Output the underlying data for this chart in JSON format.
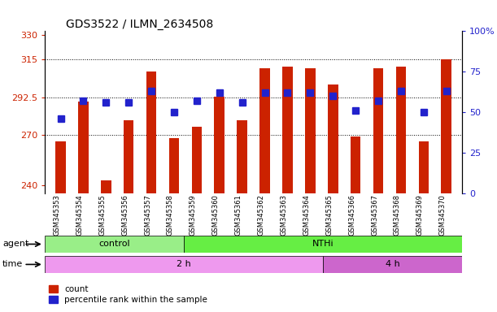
{
  "title": "GDS3522 / ILMN_2634508",
  "samples": [
    "GSM345353",
    "GSM345354",
    "GSM345355",
    "GSM345356",
    "GSM345357",
    "GSM345358",
    "GSM345359",
    "GSM345360",
    "GSM345361",
    "GSM345362",
    "GSM345363",
    "GSM345364",
    "GSM345365",
    "GSM345366",
    "GSM345367",
    "GSM345368",
    "GSM345369",
    "GSM345370"
  ],
  "counts": [
    266,
    290,
    243,
    279,
    308,
    268,
    275,
    293,
    279,
    310,
    311,
    310,
    300,
    269,
    310,
    311,
    266,
    315
  ],
  "percentile_ranks": [
    46,
    57,
    56,
    56,
    63,
    50,
    57,
    62,
    56,
    62,
    62,
    62,
    60,
    51,
    57,
    63,
    50,
    63
  ],
  "ylim_left": [
    235,
    332
  ],
  "ylim_right": [
    0,
    100
  ],
  "yticks_left": [
    240,
    270,
    292.5,
    315,
    330
  ],
  "yticks_right": [
    0,
    25,
    50,
    75,
    100
  ],
  "ytick_labels_left": [
    "240",
    "270",
    "292.5",
    "315",
    "330"
  ],
  "ytick_labels_right": [
    "0",
    "25",
    "50",
    "75",
    "100%"
  ],
  "bar_color": "#cc2200",
  "marker_color": "#2222cc",
  "marker_size": 6,
  "agent_groups": [
    {
      "label": "control",
      "start": 0,
      "end": 6,
      "color": "#99ee88"
    },
    {
      "label": "NTHi",
      "start": 6,
      "end": 18,
      "color": "#66ee44"
    }
  ],
  "time_groups": [
    {
      "label": "2 h",
      "start": 0,
      "end": 12,
      "color": "#ee99ee"
    },
    {
      "label": "4 h",
      "start": 12,
      "end": 18,
      "color": "#cc66cc"
    }
  ],
  "agent_label": "agent",
  "time_label": "time",
  "legend_count_label": "count",
  "legend_pct_label": "percentile rank within the sample",
  "base_value": 235
}
